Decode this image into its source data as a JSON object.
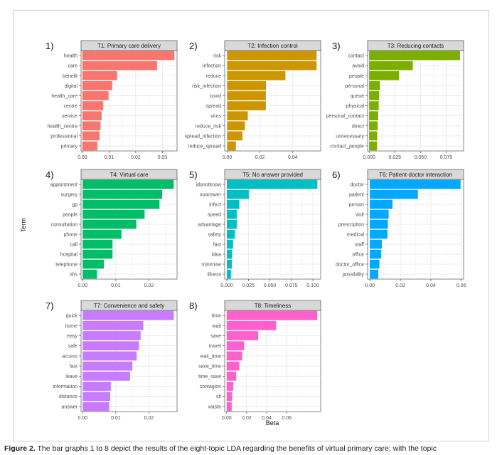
{
  "figure": {
    "ylabel": "Term",
    "xlabel": "Beta",
    "caption_label": "Figure 2.",
    "caption_text": "The bar graphs 1 to 8 depict the results of the eight-topic LDA regarding the benefits of virtual primary care; with the topic"
  },
  "chart_data": [
    {
      "type": "bar",
      "orientation": "horizontal",
      "panel_number": "1)",
      "title": "T1: Primary care delivery",
      "color": "#F8766D",
      "categories": [
        "health",
        "care",
        "benefit",
        "digital",
        "health_care",
        "centre",
        "service",
        "health_centre",
        "professional",
        "primary"
      ],
      "values": [
        0.0345,
        0.028,
        0.013,
        0.0112,
        0.0098,
        0.0078,
        0.0072,
        0.0068,
        0.0064,
        0.0056
      ],
      "xlim": [
        -0.0005,
        0.0355
      ],
      "xticks": [
        0,
        0.01,
        0.02,
        0.03
      ],
      "xtick_labels": [
        "0.00",
        "0.01",
        "0.02",
        "0.03"
      ]
    },
    {
      "type": "bar",
      "orientation": "horizontal",
      "panel_number": "2)",
      "title": "T2: Infection control",
      "color": "#CD9600",
      "categories": [
        "risk",
        "infection",
        "reduce",
        "risk_infection",
        "covid",
        "spread",
        "virus",
        "reduce_risk",
        "spread_infection",
        "reduce_spread"
      ],
      "values": [
        0.0545,
        0.0545,
        0.0355,
        0.0237,
        0.0236,
        0.0236,
        0.0126,
        0.0108,
        0.0093,
        0.0053
      ],
      "xlim": [
        -0.0015,
        0.057
      ],
      "xticks": [
        0,
        0.02,
        0.04
      ],
      "xtick_labels": [
        "0.00",
        "0.02",
        "0.04"
      ]
    },
    {
      "type": "bar",
      "orientation": "horizontal",
      "panel_number": "3)",
      "title": "T3: Reducing contacts",
      "color": "#7CAE00",
      "categories": [
        "contact",
        "avoid",
        "people",
        "personal",
        "queue",
        "physical",
        "personal_contact",
        "direct",
        "unnecessary",
        "contact_people"
      ],
      "values": [
        0.0885,
        0.0425,
        0.029,
        0.0105,
        0.0097,
        0.0093,
        0.0088,
        0.0083,
        0.0078,
        0.0075
      ],
      "xlim": [
        -0.0015,
        0.092
      ],
      "xticks": [
        0,
        0.025,
        0.05,
        0.075
      ],
      "xtick_labels": [
        "0.000",
        "0.025",
        "0.050",
        "0.075"
      ]
    },
    {
      "type": "bar",
      "orientation": "horizontal",
      "panel_number": "4)",
      "title": "T4: Virtual care",
      "color": "#00BE67",
      "categories": [
        "appointment",
        "surgery",
        "gp",
        "people",
        "consultation",
        "phone",
        "call",
        "hospital",
        "telephone",
        "nhs"
      ],
      "values": [
        0.0275,
        0.024,
        0.0232,
        0.0187,
        0.0162,
        0.0117,
        0.009,
        0.009,
        0.0064,
        0.0043
      ],
      "xlim": [
        -0.0005,
        0.0285
      ],
      "xticks": [
        0,
        0.01,
        0.02
      ],
      "xtick_labels": [
        "0.00",
        "0.01",
        "0.02"
      ]
    },
    {
      "type": "bar",
      "orientation": "horizontal",
      "panel_number": "5)",
      "title": "T5: No answer provided",
      "color": "#00BFC4",
      "categories": [
        "idonotknow",
        "noanswer",
        "infect",
        "speed",
        "advantage",
        "safety",
        "fast",
        "idea",
        "minimise",
        "illness"
      ],
      "values": [
        0.105,
        0.0255,
        0.0145,
        0.0115,
        0.0115,
        0.0093,
        0.0072,
        0.0062,
        0.0058,
        0.0048
      ],
      "xlim": [
        -0.0025,
        0.109
      ],
      "xticks": [
        0,
        0.025,
        0.05,
        0.075,
        0.1
      ],
      "xtick_labels": [
        "0.000",
        "0.025",
        "0.050",
        "0.075",
        "0.100"
      ]
    },
    {
      "type": "bar",
      "orientation": "horizontal",
      "panel_number": "6)",
      "title": "T6: Patient-doctor interaction",
      "color": "#00A9FF",
      "categories": [
        "doctor",
        "patient",
        "person",
        "visit",
        "prescription",
        "medical",
        "staff",
        "office",
        "doctor_office",
        "possibility"
      ],
      "values": [
        0.0595,
        0.0315,
        0.0148,
        0.0123,
        0.0118,
        0.0115,
        0.0078,
        0.0073,
        0.0062,
        0.0055
      ],
      "xlim": [
        -0.0015,
        0.0615
      ],
      "xticks": [
        0,
        0.02,
        0.04,
        0.06
      ],
      "xtick_labels": [
        "0.00",
        "0.02",
        "0.04",
        "0.06"
      ]
    },
    {
      "type": "bar",
      "orientation": "horizontal",
      "panel_number": "7)",
      "title": "T7: Convenience and safety",
      "color": "#C77CFF",
      "categories": [
        "quick",
        "home",
        "easy",
        "safe",
        "access",
        "fast",
        "leave",
        "information",
        "distance",
        "answer"
      ],
      "values": [
        0.0275,
        0.0183,
        0.0175,
        0.017,
        0.0163,
        0.015,
        0.0143,
        0.0085,
        0.0083,
        0.008
      ],
      "xlim": [
        -0.0005,
        0.0285
      ],
      "xticks": [
        0,
        0.01,
        0.02
      ],
      "xtick_labels": [
        "0.00",
        "0.01",
        "0.02"
      ]
    },
    {
      "type": "bar",
      "orientation": "horizontal",
      "panel_number": "8)",
      "title": "T8: Timeliness",
      "color": "#FF61CC",
      "categories": [
        "time",
        "wait",
        "save",
        "travel",
        "wait_time",
        "save_time",
        "time_save",
        "contagion",
        "sit",
        "waste"
      ],
      "values": [
        0.0905,
        0.0495,
        0.0315,
        0.0175,
        0.0155,
        0.0125,
        0.0095,
        0.0065,
        0.0055,
        0.005
      ],
      "xlim": [
        -0.002,
        0.094
      ],
      "xticks": [
        0,
        0.02,
        0.04,
        0.06
      ],
      "xtick_labels": [
        "0.00",
        "0.02",
        "0.04",
        "0.06"
      ]
    }
  ]
}
